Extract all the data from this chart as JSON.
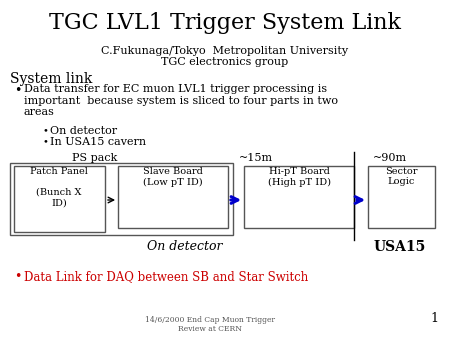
{
  "title": "TGC LVL1 Trigger System Link",
  "subtitle1": "C.Fukunaga/Tokyo  Metropolitan University",
  "subtitle2": "TGC electronics group",
  "section_title": "System link",
  "bullet1": "Data transfer for EC muon LVL1 trigger processing is\nimportant  because system is sliced to four parts in two\nareas",
  "sub_bullet1": "On detector",
  "sub_bullet2": "In USA15 cavern",
  "footer": "14/6/2000 End Cap Muon Trigger\nReview at CERN",
  "page_num": "1",
  "ps_pack_label": "PS pack",
  "dist1_label": "~15m",
  "dist2_label": "~90m",
  "box1_text": "Patch Panel\n\n(Bunch X\nID)",
  "box2_text": "Slave Board\n(Low pT ID)",
  "box3_text": "Hi-pT Board\n(High pT ID)",
  "box4_text": "Sector\nLogic",
  "on_detector_label": "On detector",
  "usa15_label": "USA15",
  "red_bullet": "Data Link for DAQ between SB and Star Switch",
  "bg_color": "#ffffff",
  "title_color": "#000000",
  "red_color": "#cc0000",
  "blue_color": "#0000cc",
  "box_edge_color": "#555555"
}
